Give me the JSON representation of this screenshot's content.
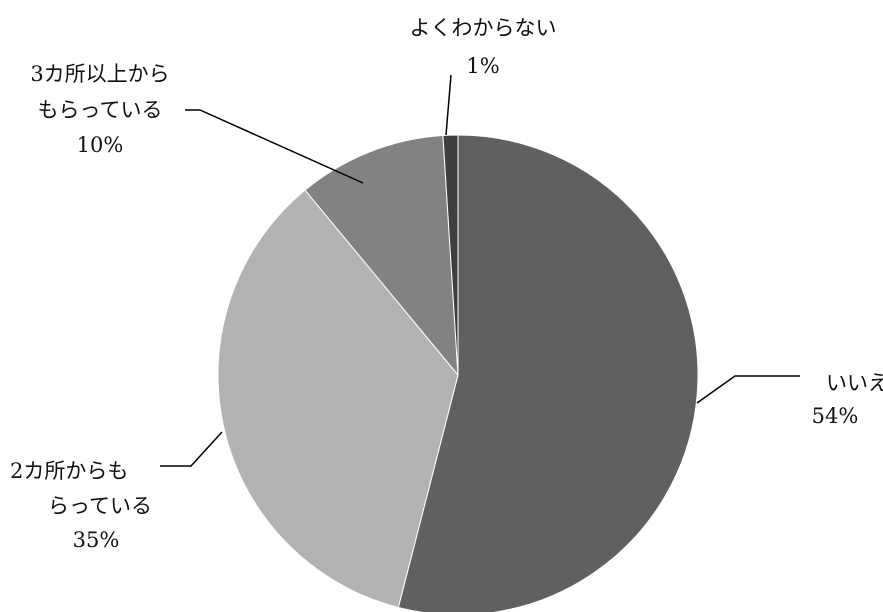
{
  "chart_data": {
    "type": "pie",
    "title": "",
    "slices": [
      {
        "label_lines": [
          "いいえ"
        ],
        "percent_label": "54%",
        "value": 54,
        "color": "#606060"
      },
      {
        "label_lines": [
          "2カ所からも",
          "らっている"
        ],
        "percent_label": "35%",
        "value": 35,
        "color": "#b2b2b2"
      },
      {
        "label_lines": [
          "3カ所以上から",
          "もらっている"
        ],
        "percent_label": "10%",
        "value": 10,
        "color": "#828282"
      },
      {
        "label_lines": [
          "よくわからない"
        ],
        "percent_label": "1%",
        "value": 1,
        "color": "#3f3f3f"
      }
    ],
    "start": "12 o'clock",
    "direction": "clockwise",
    "legend": "none"
  }
}
